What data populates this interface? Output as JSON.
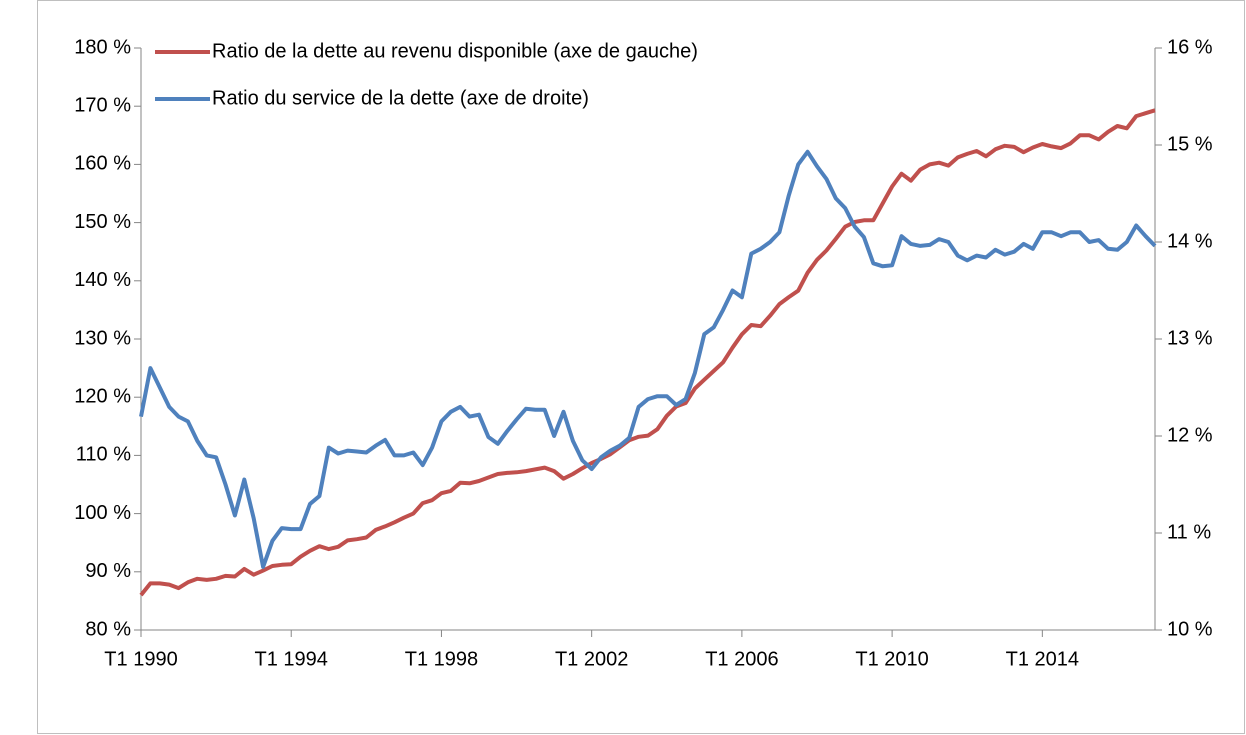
{
  "chart_data": {
    "type": "line",
    "categories": [
      "T1 1990",
      null,
      null,
      null,
      null,
      null,
      null,
      null,
      null,
      null,
      null,
      null,
      null,
      null,
      null,
      null,
      "T1 1994",
      null,
      null,
      null,
      null,
      null,
      null,
      null,
      null,
      null,
      null,
      null,
      null,
      null,
      null,
      null,
      "T1 1998",
      null,
      null,
      null,
      null,
      null,
      null,
      null,
      null,
      null,
      null,
      null,
      null,
      null,
      null,
      null,
      "T1 2002",
      null,
      null,
      null,
      null,
      null,
      null,
      null,
      null,
      null,
      null,
      null,
      null,
      null,
      null,
      null,
      "T1 2006",
      null,
      null,
      null,
      null,
      null,
      null,
      null,
      null,
      null,
      null,
      null,
      null,
      null,
      null,
      null,
      "T1 2010",
      null,
      null,
      null,
      null,
      null,
      null,
      null,
      null,
      null,
      null,
      null,
      null,
      null,
      null,
      null,
      "T1 2014",
      null,
      null,
      null,
      null,
      null,
      null,
      null,
      null,
      null,
      null,
      null,
      null
    ],
    "series": [
      {
        "name": "Ratio de la dette au revenu disponible (axe de gauche)",
        "color": "#c0504d",
        "axis": "y",
        "values": [
          86,
          88,
          88,
          87.8,
          87.2,
          88.2,
          88.8,
          88.6,
          88.8,
          89.3,
          89.2,
          90.5,
          89.5,
          90.2,
          91,
          91.2,
          91.3,
          92.6,
          93.6,
          94.4,
          93.9,
          94.3,
          95.4,
          95.6,
          95.9,
          97.2,
          97.8,
          98.5,
          99.3,
          100,
          101.8,
          102.3,
          103.5,
          103.9,
          105.3,
          105.2,
          105.6,
          106.2,
          106.8,
          107,
          107.1,
          107.3,
          107.6,
          107.9,
          107.3,
          106,
          106.8,
          107.8,
          108.7,
          109.4,
          110.2,
          111.4,
          112.6,
          113.2,
          113.4,
          114.5,
          116.8,
          118.4,
          119,
          121.5,
          123,
          124.5,
          126,
          128.5,
          130.8,
          132.4,
          132.2,
          134,
          136,
          137.2,
          138.3,
          141.4,
          143.6,
          145.2,
          147.2,
          149.3,
          150.1,
          150.4,
          150.4,
          153.3,
          156.2,
          158.4,
          157.2,
          159.1,
          160,
          160.3,
          159.8,
          161.2,
          161.8,
          162.3,
          161.4,
          162.6,
          163.2,
          163,
          162.1,
          162.9,
          163.5,
          163.1,
          162.8,
          163.6,
          165,
          165,
          164.3,
          165.6,
          166.6,
          166.2,
          168.3,
          168.8,
          169.3
        ]
      },
      {
        "name": "Ratio du service de la dette (axe de droite)",
        "color": "#4f81bd",
        "axis": "y2",
        "values": [
          12.2,
          12.7,
          12.5,
          12.3,
          12.2,
          12.15,
          11.95,
          11.8,
          11.78,
          11.5,
          11.18,
          11.55,
          11.15,
          10.65,
          10.92,
          11.05,
          11.04,
          11.04,
          11.3,
          11.38,
          11.88,
          11.82,
          11.85,
          11.84,
          11.83,
          11.9,
          11.96,
          11.8,
          11.8,
          11.83,
          11.7,
          11.88,
          12.15,
          12.25,
          12.3,
          12.2,
          12.22,
          11.99,
          11.92,
          12.05,
          12.17,
          12.28,
          12.27,
          12.27,
          12.0,
          12.25,
          11.95,
          11.75,
          11.66,
          11.78,
          11.85,
          11.9,
          11.98,
          12.3,
          12.38,
          12.41,
          12.41,
          12.32,
          12.38,
          12.65,
          13.05,
          13.12,
          13.3,
          13.5,
          13.43,
          13.88,
          13.93,
          14.0,
          14.1,
          14.48,
          14.8,
          14.93,
          14.78,
          14.65,
          14.45,
          14.35,
          14.16,
          14.05,
          13.78,
          13.75,
          13.76,
          14.06,
          13.98,
          13.96,
          13.97,
          14.03,
          14.0,
          13.86,
          13.81,
          13.86,
          13.84,
          13.92,
          13.87,
          13.9,
          13.98,
          13.93,
          14.1,
          14.1,
          14.06,
          14.1,
          14.1,
          14.0,
          14.02,
          13.93,
          13.92,
          14.0,
          14.17,
          14.06,
          13.96
        ]
      }
    ],
    "ylim": [
      80,
      180
    ],
    "yticks": [
      {
        "value": 80,
        "label": "80 %"
      },
      {
        "value": 90,
        "label": "90 %"
      },
      {
        "value": 100,
        "label": "100 %"
      },
      {
        "value": 110,
        "label": "110 %"
      },
      {
        "value": 120,
        "label": "120 %"
      },
      {
        "value": 130,
        "label": "130 %"
      },
      {
        "value": 140,
        "label": "140 %"
      },
      {
        "value": 150,
        "label": "150 %"
      },
      {
        "value": 160,
        "label": "160 %"
      },
      {
        "value": 170,
        "label": "170 %"
      },
      {
        "value": 180,
        "label": "180 %"
      }
    ],
    "y2lim": [
      10,
      16
    ],
    "y2ticks": [
      {
        "value": 10,
        "label": "10 %"
      },
      {
        "value": 11,
        "label": "11 %"
      },
      {
        "value": 12,
        "label": "12 %"
      },
      {
        "value": 13,
        "label": "13 %"
      },
      {
        "value": 14,
        "label": "14 %"
      },
      {
        "value": 15,
        "label": "15 %"
      },
      {
        "value": 16,
        "label": "16 %"
      }
    ],
    "legend": "top-left",
    "grid": false
  }
}
